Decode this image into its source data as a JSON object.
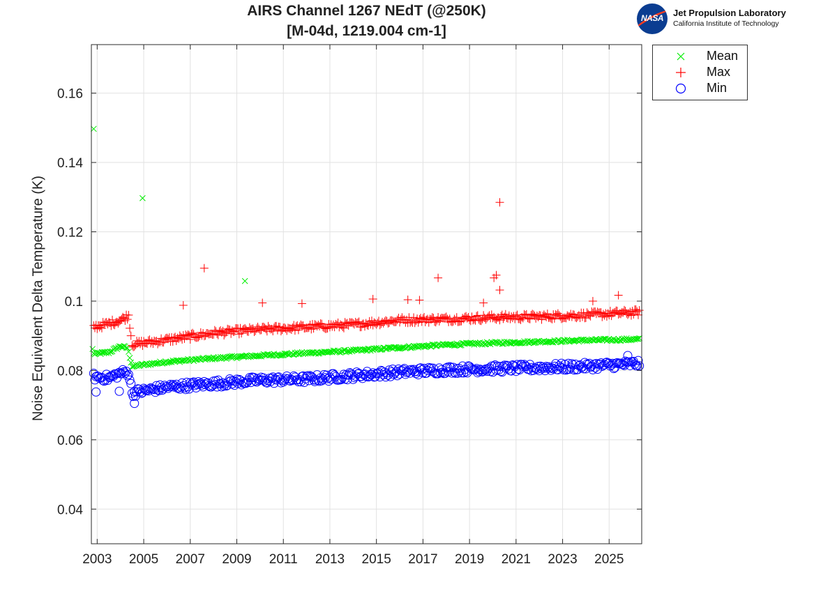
{
  "title": {
    "line1": "AIRS Channel 1267 NEdT (@250K)",
    "line2": "[M-04d, 1219.004 cm-1]"
  },
  "logo": {
    "emblem_text": "NASA",
    "line1": "Jet Propulsion Laboratory",
    "line2": "California Institute of Technology"
  },
  "chart_data": {
    "type": "scatter",
    "title": "AIRS Channel 1267 NEdT (@250K) [M-04d, 1219.004 cm-1]",
    "xlabel": "",
    "ylabel": "Noise Equivalent Delta Temperature (K)",
    "xlim": [
      2002.75,
      2026.4
    ],
    "ylim": [
      0.03,
      0.174
    ],
    "x_ticks": [
      2003,
      2005,
      2007,
      2009,
      2011,
      2013,
      2015,
      2017,
      2019,
      2021,
      2023,
      2025
    ],
    "x_tick_labels": [
      "2003",
      "2005",
      "2007",
      "2009",
      "2011",
      "2013",
      "2015",
      "2017",
      "2019",
      "2021",
      "2023",
      "2025"
    ],
    "y_ticks": [
      0.04,
      0.06,
      0.08,
      0.1,
      0.12,
      0.14,
      0.16
    ],
    "y_tick_labels": [
      "0.04",
      "0.06",
      "0.08",
      "0.1",
      "0.12",
      "0.14",
      "0.16"
    ],
    "grid": true,
    "legend_position": "outside-top-right",
    "series": [
      {
        "name": "Mean",
        "marker": "x",
        "color": "#00ee00",
        "trend": [
          [
            2002.85,
            0.0848
          ],
          [
            2003.5,
            0.0852
          ],
          [
            2004.0,
            0.087
          ],
          [
            2004.3,
            0.0865
          ],
          [
            2004.5,
            0.0812
          ],
          [
            2006.0,
            0.0825
          ],
          [
            2008.0,
            0.0835
          ],
          [
            2010.0,
            0.0843
          ],
          [
            2012.0,
            0.085
          ],
          [
            2014.0,
            0.0857
          ],
          [
            2016.0,
            0.0866
          ],
          [
            2018.0,
            0.0874
          ],
          [
            2020.0,
            0.0879
          ],
          [
            2022.0,
            0.0883
          ],
          [
            2024.0,
            0.0887
          ],
          [
            2026.3,
            0.089
          ]
        ],
        "outliers": [
          [
            2002.85,
            0.1497
          ],
          [
            2004.95,
            0.1297
          ],
          [
            2009.35,
            0.1058
          ],
          [
            2002.8,
            0.0862
          ]
        ]
      },
      {
        "name": "Max",
        "marker": "+",
        "color": "#ff0000",
        "trend": [
          [
            2002.85,
            0.0925
          ],
          [
            2003.5,
            0.0935
          ],
          [
            2004.0,
            0.0945
          ],
          [
            2004.35,
            0.0958
          ],
          [
            2004.5,
            0.0875
          ],
          [
            2006.0,
            0.0888
          ],
          [
            2008.0,
            0.0908
          ],
          [
            2010.0,
            0.0918
          ],
          [
            2012.0,
            0.0925
          ],
          [
            2014.0,
            0.0932
          ],
          [
            2016.0,
            0.0945
          ],
          [
            2018.0,
            0.0948
          ],
          [
            2020.0,
            0.0953
          ],
          [
            2022.0,
            0.0955
          ],
          [
            2024.0,
            0.096
          ],
          [
            2026.3,
            0.0968
          ]
        ],
        "outliers": [
          [
            2020.3,
            0.1285
          ],
          [
            2007.6,
            0.1095
          ],
          [
            2017.65,
            0.1067
          ],
          [
            2020.05,
            0.1067
          ],
          [
            2020.15,
            0.1075
          ],
          [
            2020.3,
            0.1032
          ],
          [
            2025.4,
            0.1017
          ],
          [
            2014.85,
            0.1006
          ],
          [
            2016.35,
            0.1004
          ],
          [
            2010.1,
            0.0995
          ],
          [
            2011.8,
            0.0993
          ],
          [
            2006.7,
            0.0988
          ],
          [
            2016.85,
            0.1003
          ],
          [
            2019.6,
            0.0995
          ],
          [
            2024.3,
            0.1
          ]
        ]
      },
      {
        "name": "Min",
        "marker": "o",
        "color": "#0000ff",
        "trend": [
          [
            2002.85,
            0.0782
          ],
          [
            2003.5,
            0.0778
          ],
          [
            2004.0,
            0.0792
          ],
          [
            2004.35,
            0.0795
          ],
          [
            2004.5,
            0.0735
          ],
          [
            2006.0,
            0.0752
          ],
          [
            2008.0,
            0.0762
          ],
          [
            2010.0,
            0.0772
          ],
          [
            2012.0,
            0.0775
          ],
          [
            2014.0,
            0.0785
          ],
          [
            2016.0,
            0.0795
          ],
          [
            2018.0,
            0.0802
          ],
          [
            2020.0,
            0.0805
          ],
          [
            2022.0,
            0.0808
          ],
          [
            2024.0,
            0.0812
          ],
          [
            2026.3,
            0.082
          ]
        ],
        "outliers": [
          [
            2004.6,
            0.0705
          ],
          [
            2002.95,
            0.0738
          ],
          [
            2003.95,
            0.074
          ],
          [
            2025.8,
            0.0843
          ]
        ]
      }
    ]
  }
}
